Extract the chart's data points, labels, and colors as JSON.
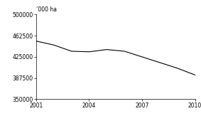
{
  "years": [
    2001,
    2002,
    2003,
    2004,
    2005,
    2006,
    2007,
    2008,
    2009,
    2010
  ],
  "values": [
    453000,
    446000,
    435000,
    434000,
    438000,
    435000,
    425000,
    415000,
    405000,
    393000
  ],
  "ylabel": "’000 ha",
  "ylim": [
    350000,
    500000
  ],
  "yticks": [
    350000,
    387500,
    425000,
    462500,
    500000
  ],
  "xticks": [
    2001,
    2004,
    2007,
    2010
  ],
  "line_color": "#000000",
  "background_color": "#ffffff",
  "tick_fontsize": 5.5,
  "ylabel_fontsize": 5.5
}
